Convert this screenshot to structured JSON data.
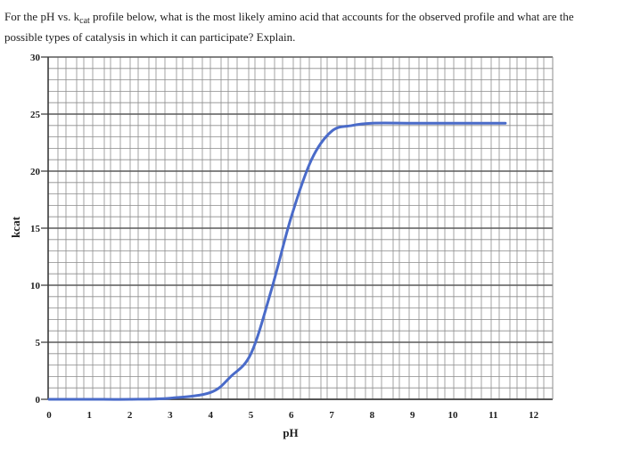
{
  "question": {
    "part1": "For the pH vs. k",
    "sub": "cat",
    "part2": " profile below, what is the most likely amino acid that accounts for the observed profile and what are the possible types of catalysis in which it can participate? Explain."
  },
  "chart_data": {
    "type": "line",
    "title": "",
    "xlabel": "pH",
    "ylabel": "kcat",
    "xlim": [
      0,
      12
    ],
    "ylim": [
      0,
      30
    ],
    "x_ticks": [
      0,
      1,
      2,
      3,
      4,
      5,
      6,
      7,
      8,
      9,
      10,
      11,
      12
    ],
    "y_ticks": [
      0,
      5,
      10,
      15,
      20,
      25,
      30
    ],
    "grid": true,
    "series": [
      {
        "name": "",
        "color": "#4a6bc9",
        "x": [
          0,
          1,
          2,
          3,
          4,
          4.5,
          5,
          5.5,
          6,
          6.5,
          7,
          7.5,
          8,
          9,
          10,
          11.3
        ],
        "y": [
          0,
          0,
          0,
          0.1,
          0.6,
          2.0,
          4.0,
          9.5,
          16.0,
          21.0,
          23.5,
          24.0,
          24.2,
          24.2,
          24.2,
          24.2
        ]
      }
    ]
  }
}
